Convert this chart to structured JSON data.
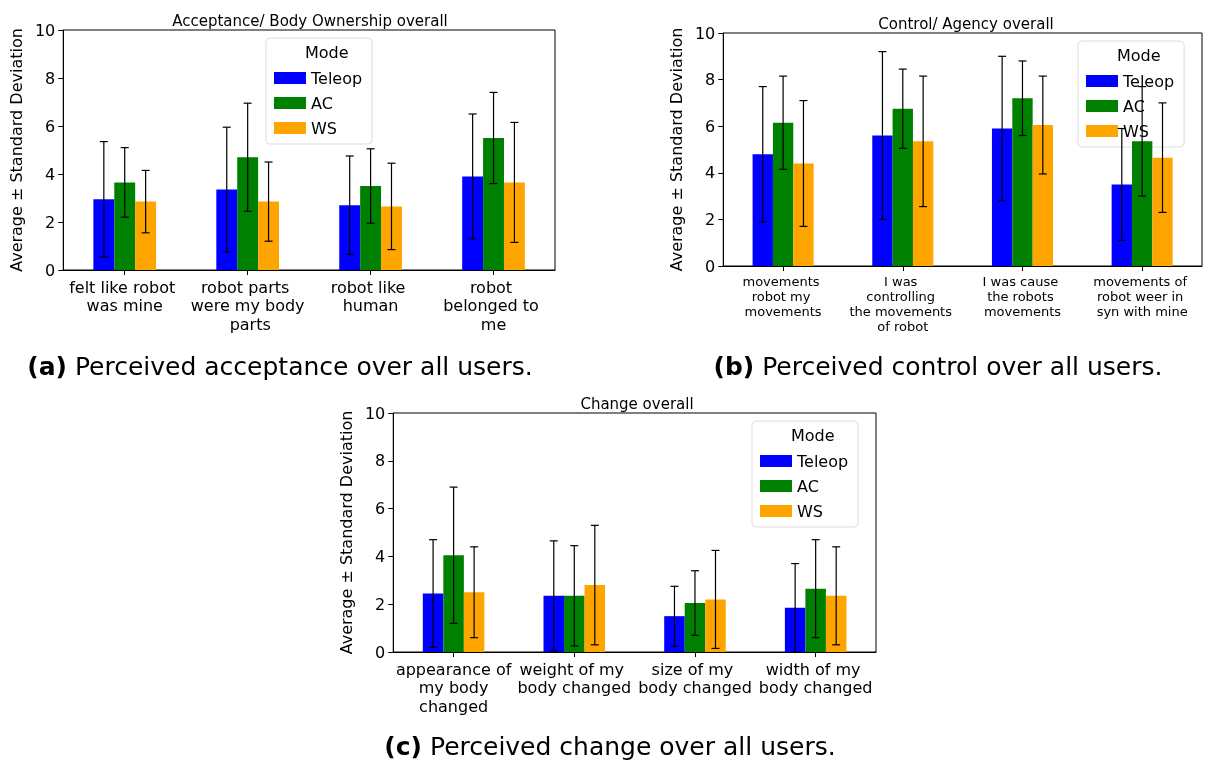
{
  "chart_data": [
    {
      "type": "bar",
      "title": "Acceptance/ Body Ownership overall",
      "ylabel": "Average ± Standard Deviation",
      "legend_title": "Mode",
      "legend": "top",
      "categories": [
        "felt like robot was mine",
        "robot parts were my body parts",
        "robot like human",
        "robot belonged to me"
      ],
      "series": [
        {
          "name": "Teleop",
          "color": "#0000ff",
          "values": [
            2.95,
            3.35,
            2.7,
            3.9
          ],
          "errors": [
            2.4,
            2.6,
            2.05,
            2.6
          ]
        },
        {
          "name": "AC",
          "color": "#008000",
          "values": [
            3.65,
            4.7,
            3.5,
            5.5
          ],
          "errors": [
            1.45,
            2.25,
            1.55,
            1.9
          ]
        },
        {
          "name": "WS",
          "color": "#ffa500",
          "values": [
            2.85,
            2.85,
            2.65,
            3.65
          ],
          "errors": [
            1.3,
            1.65,
            1.8,
            2.5
          ]
        }
      ],
      "ylim": [
        0,
        10
      ],
      "yticks": [
        0,
        2,
        4,
        6,
        8,
        10
      ],
      "grid": false,
      "annotations": [
        "(a) Perceived acceptance over all users."
      ]
    },
    {
      "type": "bar",
      "title": "Control/ Agency overall",
      "ylabel": "Average ± Standard Deviation",
      "legend_title": "Mode",
      "legend": "top right",
      "categories": [
        "movements robot my movements",
        "I was controlling the movements of robot",
        "I was cause the robots movements",
        "movements of robot weer in syn with mine"
      ],
      "series": [
        {
          "name": "Teleop",
          "color": "#0000ff",
          "values": [
            4.8,
            5.6,
            5.9,
            3.5
          ],
          "errors": [
            2.9,
            3.6,
            3.1,
            2.4
          ]
        },
        {
          "name": "AC",
          "color": "#008000",
          "values": [
            6.15,
            6.75,
            7.2,
            5.35
          ],
          "errors": [
            2.0,
            1.7,
            1.6,
            2.35
          ]
        },
        {
          "name": "WS",
          "color": "#ffa500",
          "values": [
            4.4,
            5.35,
            6.05,
            4.65
          ],
          "errors": [
            2.7,
            2.8,
            2.1,
            2.35
          ]
        }
      ],
      "ylim": [
        0,
        10
      ],
      "yticks": [
        0,
        2,
        4,
        6,
        8,
        10
      ],
      "grid": false,
      "annotations": [
        "(b) Perceived control over all users."
      ]
    },
    {
      "type": "bar",
      "title": "Change overall",
      "ylabel": "Average ± Standard Deviation",
      "legend_title": "Mode",
      "legend": "top right",
      "categories": [
        "appearance of my body changed",
        "weight of my body changed",
        "size of my body changed",
        "width of my body changed"
      ],
      "series": [
        {
          "name": "Teleop",
          "color": "#0000ff",
          "values": [
            2.45,
            2.35,
            1.5,
            1.85
          ],
          "errors": [
            2.25,
            2.3,
            1.25,
            1.85
          ]
        },
        {
          "name": "AC",
          "color": "#008000",
          "values": [
            4.05,
            2.35,
            2.05,
            2.65
          ],
          "errors": [
            2.85,
            2.1,
            1.35,
            2.05
          ]
        },
        {
          "name": "WS",
          "color": "#ffa500",
          "values": [
            2.5,
            2.8,
            2.2,
            2.35
          ],
          "errors": [
            1.9,
            2.5,
            2.05,
            2.05
          ]
        }
      ],
      "ylim": [
        0,
        10
      ],
      "yticks": [
        0,
        2,
        4,
        6,
        8,
        10
      ],
      "grid": false,
      "annotations": [
        "(c) Perceived change over all users."
      ]
    }
  ]
}
